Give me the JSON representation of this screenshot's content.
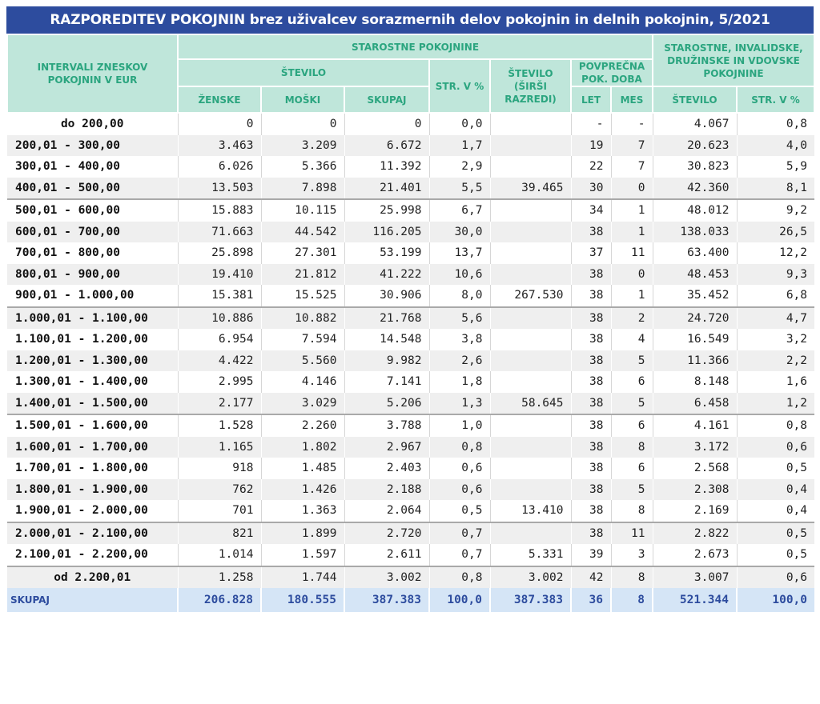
{
  "title": "RAZPOREDITEV POKOJNIN brez uživalcev sorazmernih delov pokojnin in delnih pokojnin, 5/2021",
  "header": {
    "interval": "INTERVALI ZNESKOV POKOJNIN V EUR",
    "starostne": "STAROSTNE POKOJNINE",
    "stevilo": "ŠTEVILO",
    "zenske": "ŽENSKE",
    "moski": "MOŠKI",
    "skupaj": "SKUPAJ",
    "str": "STR. V %",
    "stevilo_sirsi": "ŠTEVILO (ŠIRŠI RAZREDI)",
    "povprecna": "POVPREČNA POK. DOBA",
    "let": "LET",
    "mes": "MES",
    "vse": "STAROSTNE, INVALIDSKE, DRUŽINSKE IN VDOVSKE POKOJNINE",
    "vse_stevilo": "ŠTEVILO",
    "vse_str": "STR. V %"
  },
  "rows": [
    [
      "do 200,00",
      "0",
      "0",
      "0",
      "0,0",
      "",
      "-",
      "-",
      "4.067",
      "0,8"
    ],
    [
      "200,01 - 300,00",
      "3.463",
      "3.209",
      "6.672",
      "1,7",
      "",
      "19",
      "7",
      "20.623",
      "4,0"
    ],
    [
      "300,01 - 400,00",
      "6.026",
      "5.366",
      "11.392",
      "2,9",
      "",
      "22",
      "7",
      "30.823",
      "5,9"
    ],
    [
      "400,01 - 500,00",
      "13.503",
      "7.898",
      "21.401",
      "5,5",
      "39.465",
      "30",
      "0",
      "42.360",
      "8,1"
    ],
    [
      "500,01 - 600,00",
      "15.883",
      "10.115",
      "25.998",
      "6,7",
      "",
      "34",
      "1",
      "48.012",
      "9,2"
    ],
    [
      "600,01 - 700,00",
      "71.663",
      "44.542",
      "116.205",
      "30,0",
      "",
      "38",
      "1",
      "138.033",
      "26,5"
    ],
    [
      "700,01 - 800,00",
      "25.898",
      "27.301",
      "53.199",
      "13,7",
      "",
      "37",
      "11",
      "63.400",
      "12,2"
    ],
    [
      "800,01 - 900,00",
      "19.410",
      "21.812",
      "41.222",
      "10,6",
      "",
      "38",
      "0",
      "48.453",
      "9,3"
    ],
    [
      "900,01 - 1.000,00",
      "15.381",
      "15.525",
      "30.906",
      "8,0",
      "267.530",
      "38",
      "1",
      "35.452",
      "6,8"
    ],
    [
      "1.000,01 - 1.100,00",
      "10.886",
      "10.882",
      "21.768",
      "5,6",
      "",
      "38",
      "2",
      "24.720",
      "4,7"
    ],
    [
      "1.100,01 - 1.200,00",
      "6.954",
      "7.594",
      "14.548",
      "3,8",
      "",
      "38",
      "4",
      "16.549",
      "3,2"
    ],
    [
      "1.200,01 - 1.300,00",
      "4.422",
      "5.560",
      "9.982",
      "2,6",
      "",
      "38",
      "5",
      "11.366",
      "2,2"
    ],
    [
      "1.300,01 - 1.400,00",
      "2.995",
      "4.146",
      "7.141",
      "1,8",
      "",
      "38",
      "6",
      "8.148",
      "1,6"
    ],
    [
      "1.400,01 - 1.500,00",
      "2.177",
      "3.029",
      "5.206",
      "1,3",
      "58.645",
      "38",
      "5",
      "6.458",
      "1,2"
    ],
    [
      "1.500,01 - 1.600,00",
      "1.528",
      "2.260",
      "3.788",
      "1,0",
      "",
      "38",
      "6",
      "4.161",
      "0,8"
    ],
    [
      "1.600,01 - 1.700,00",
      "1.165",
      "1.802",
      "2.967",
      "0,8",
      "",
      "38",
      "8",
      "3.172",
      "0,6"
    ],
    [
      "1.700,01 - 1.800,00",
      "918",
      "1.485",
      "2.403",
      "0,6",
      "",
      "38",
      "6",
      "2.568",
      "0,5"
    ],
    [
      "1.800,01 - 1.900,00",
      "762",
      "1.426",
      "2.188",
      "0,6",
      "",
      "38",
      "5",
      "2.308",
      "0,4"
    ],
    [
      "1.900,01 - 2.000,00",
      "701",
      "1.363",
      "2.064",
      "0,5",
      "13.410",
      "38",
      "8",
      "2.169",
      "0,4"
    ],
    [
      "2.000,01 - 2.100,00",
      "821",
      "1.899",
      "2.720",
      "0,7",
      "",
      "38",
      "11",
      "2.822",
      "0,5"
    ],
    [
      "2.100,01 - 2.200,00",
      "1.014",
      "1.597",
      "2.611",
      "0,7",
      "5.331",
      "39",
      "3",
      "2.673",
      "0,5"
    ],
    [
      "od 2.200,01",
      "1.258",
      "1.744",
      "3.002",
      "0,8",
      "3.002",
      "42",
      "8",
      "3.007",
      "0,6"
    ]
  ],
  "total": [
    "SKUPAJ",
    "206.828",
    "180.555",
    "387.383",
    "100,0",
    "387.383",
    "36",
    "8",
    "521.344",
    "100,0"
  ]
}
